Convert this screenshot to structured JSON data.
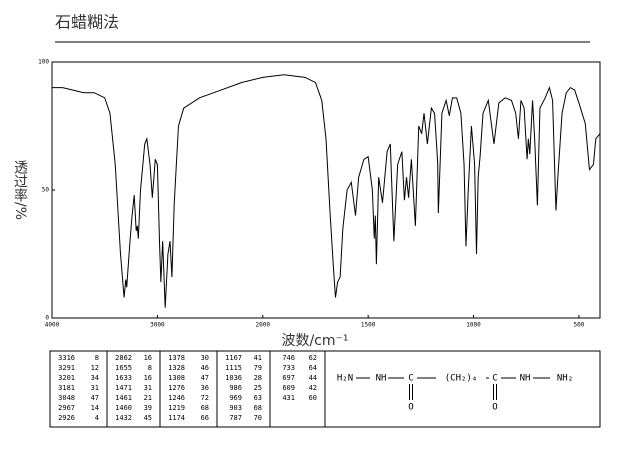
{
  "chart_data": {
    "type": "line",
    "title": "石蜡糊法",
    "xlabel": "波数/cm⁻¹",
    "ylabel": "透过率/%",
    "xlim": [
      4000,
      400
    ],
    "xbreak": 2000,
    "xticks": [
      4000,
      3000,
      2000,
      1500,
      1000,
      500
    ],
    "ylim": [
      0,
      100
    ],
    "yticks": [
      0,
      50,
      100
    ],
    "color": "#000000",
    "x": [
      4000,
      3900,
      3800,
      3700,
      3600,
      3500,
      3450,
      3400,
      3350,
      3316,
      3300,
      3291,
      3260,
      3240,
      3220,
      3201,
      3190,
      3181,
      3160,
      3120,
      3100,
      3070,
      3048,
      3020,
      3000,
      2980,
      2967,
      2950,
      2926,
      2900,
      2880,
      2862,
      2840,
      2800,
      2750,
      2600,
      2400,
      2200,
      2000,
      1900,
      1800,
      1750,
      1720,
      1700,
      1680,
      1665,
      1655,
      1645,
      1633,
      1620,
      1600,
      1580,
      1560,
      1545,
      1520,
      1500,
      1480,
      1471,
      1466,
      1461,
      1450,
      1432,
      1410,
      1395,
      1378,
      1360,
      1340,
      1328,
      1318,
      1308,
      1295,
      1276,
      1260,
      1246,
      1235,
      1219,
      1200,
      1185,
      1174,
      1170,
      1167,
      1150,
      1130,
      1115,
      1100,
      1080,
      1060,
      1045,
      1036,
      1025,
      1010,
      995,
      986,
      978,
      969,
      955,
      930,
      903,
      880,
      850,
      820,
      800,
      787,
      775,
      760,
      746,
      740,
      733,
      720,
      710,
      697,
      685,
      660,
      640,
      625,
      609,
      600,
      580,
      560,
      540,
      520,
      500,
      470,
      450,
      431,
      420,
      400
    ],
    "values": [
      90,
      90,
      89,
      88,
      88,
      86,
      80,
      60,
      25,
      8,
      15,
      12,
      30,
      40,
      48,
      34,
      36,
      31,
      50,
      68,
      70,
      60,
      47,
      62,
      60,
      30,
      14,
      30,
      4,
      25,
      30,
      16,
      45,
      75,
      82,
      86,
      89,
      92,
      94,
      95,
      94,
      92,
      85,
      70,
      40,
      20,
      8,
      14,
      16,
      35,
      50,
      53,
      40,
      55,
      62,
      63,
      50,
      31,
      40,
      21,
      55,
      45,
      65,
      68,
      30,
      60,
      65,
      46,
      55,
      47,
      62,
      36,
      75,
      72,
      80,
      68,
      82,
      80,
      66,
      60,
      41,
      80,
      85,
      79,
      86,
      86,
      80,
      60,
      28,
      50,
      75,
      60,
      25,
      55,
      63,
      80,
      85,
      68,
      84,
      86,
      85,
      80,
      70,
      85,
      82,
      62,
      70,
      64,
      85,
      70,
      44,
      82,
      86,
      90,
      85,
      42,
      55,
      80,
      88,
      90,
      89,
      84,
      76,
      58,
      60,
      70,
      72
    ]
  },
  "peak_table": {
    "columns": [
      [
        [
          3316,
          8
        ],
        [
          3291,
          12
        ],
        [
          3201,
          34
        ],
        [
          3181,
          31
        ],
        [
          3048,
          47
        ],
        [
          2967,
          14
        ],
        [
          2926,
          4
        ]
      ],
      [
        [
          2862,
          16
        ],
        [
          1655,
          8
        ],
        [
          1633,
          16
        ],
        [
          1471,
          31
        ],
        [
          1461,
          21
        ],
        [
          1460,
          39
        ],
        [
          1432,
          45
        ]
      ],
      [
        [
          1378,
          30
        ],
        [
          1328,
          46
        ],
        [
          1308,
          47
        ],
        [
          1276,
          36
        ],
        [
          1246,
          72
        ],
        [
          1219,
          68
        ],
        [
          1174,
          66
        ]
      ],
      [
        [
          1167,
          41
        ],
        [
          1115,
          79
        ],
        [
          1036,
          28
        ],
        [
          986,
          25
        ],
        [
          969,
          63
        ],
        [
          903,
          68
        ],
        [
          787,
          70
        ]
      ],
      [
        [
          746,
          62
        ],
        [
          733,
          64
        ],
        [
          697,
          44
        ],
        [
          609,
          42
        ],
        [
          431,
          60
        ]
      ]
    ]
  },
  "structure": {
    "groups": [
      "H₂N",
      "NH",
      "C",
      "(CH₂)₄",
      "C",
      "NH",
      "NH₂"
    ],
    "oxygens": [
      "O",
      "O"
    ]
  }
}
